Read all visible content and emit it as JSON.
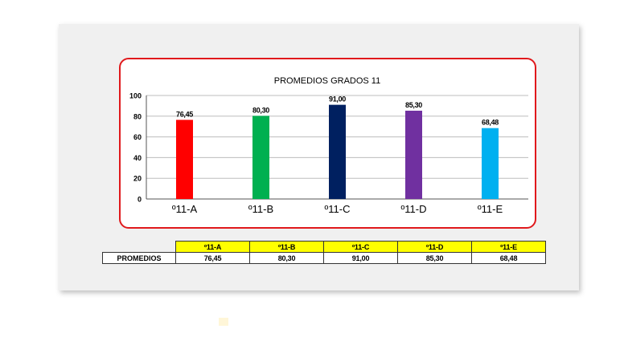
{
  "chart_data": {
    "type": "bar",
    "title": "PROMEDIOS GRADOS 11",
    "categories": [
      "º11-A",
      "º11-B",
      "º11-C",
      "º11-D",
      "º11-E"
    ],
    "values": [
      76.45,
      80.3,
      91.0,
      85.3,
      68.48
    ],
    "value_labels": [
      "76,45",
      "80,30",
      "91,00",
      "85,30",
      "68,48"
    ],
    "colors": [
      "#ff0000",
      "#00b050",
      "#002060",
      "#7030a0",
      "#00b0f0"
    ],
    "ylim": [
      0,
      100
    ],
    "yticks": [
      0,
      20,
      40,
      60,
      80,
      100
    ],
    "grid": true,
    "legend": "none"
  },
  "table": {
    "row_label": "PROMEDIOS",
    "headers": [
      "º11-A",
      "º11-B",
      "º11-C",
      "º11-D",
      "º11-E"
    ],
    "values": [
      "76,45",
      "80,30",
      "91,00",
      "85,30",
      "68,48"
    ]
  }
}
